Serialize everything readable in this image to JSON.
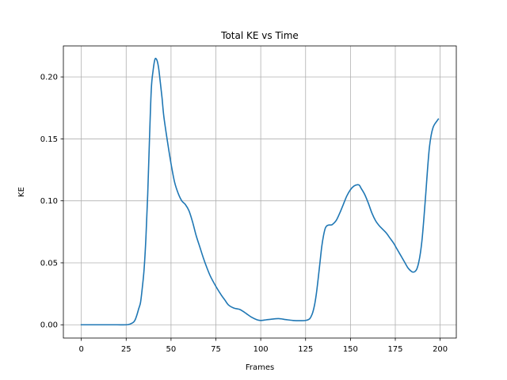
{
  "chart_data": {
    "type": "line",
    "title": "Total KE vs Time",
    "xlabel": "Frames",
    "ylabel": "KE",
    "xlim": [
      -10,
      209
    ],
    "ylim": [
      -0.0107,
      0.225
    ],
    "grid": true,
    "x_ticks": [
      0,
      25,
      50,
      75,
      100,
      125,
      150,
      175,
      200
    ],
    "x_tick_labels": [
      "0",
      "25",
      "50",
      "75",
      "100",
      "125",
      "150",
      "175",
      "200"
    ],
    "y_ticks": [
      0.0,
      0.05,
      0.1,
      0.15,
      0.2
    ],
    "y_tick_labels": [
      "0.00",
      "0.05",
      "0.10",
      "0.15",
      "0.20"
    ],
    "series": [
      {
        "color": "#1f77b4",
        "x": [
          0,
          5,
          10,
          15,
          20,
          25,
          27,
          29,
          30,
          31,
          32,
          33,
          34,
          35,
          36,
          37,
          38,
          39,
          40,
          41,
          42,
          43,
          44,
          45,
          46,
          48,
          50,
          52,
          54,
          56,
          58,
          60,
          62,
          64,
          66,
          68,
          70,
          72,
          75,
          78,
          80,
          82,
          85,
          88,
          90,
          92,
          95,
          98,
          100,
          103,
          106,
          110,
          114,
          118,
          122,
          125,
          127,
          128,
          129,
          130,
          131,
          132,
          133,
          134,
          135,
          136,
          137,
          138,
          139,
          140,
          142,
          144,
          146,
          148,
          150,
          152,
          154,
          155,
          156,
          158,
          160,
          162,
          164,
          166,
          168,
          170,
          172,
          174,
          176,
          178,
          180,
          182,
          184,
          185,
          186,
          187,
          188,
          189,
          190,
          191,
          192,
          193,
          194,
          195,
          196,
          197,
          198,
          199
        ],
        "y": [
          0.0,
          0.0,
          0.0,
          0.0,
          0.0,
          0.0,
          0.0005,
          0.002,
          0.004,
          0.008,
          0.013,
          0.018,
          0.03,
          0.045,
          0.07,
          0.105,
          0.15,
          0.19,
          0.205,
          0.214,
          0.214,
          0.208,
          0.196,
          0.183,
          0.168,
          0.148,
          0.13,
          0.115,
          0.106,
          0.1,
          0.097,
          0.092,
          0.083,
          0.072,
          0.063,
          0.054,
          0.046,
          0.039,
          0.031,
          0.024,
          0.02,
          0.016,
          0.0135,
          0.0125,
          0.011,
          0.009,
          0.006,
          0.004,
          0.0035,
          0.004,
          0.0045,
          0.005,
          0.0042,
          0.0035,
          0.0033,
          0.0035,
          0.0045,
          0.0065,
          0.01,
          0.016,
          0.025,
          0.037,
          0.05,
          0.063,
          0.072,
          0.078,
          0.08,
          0.0805,
          0.0805,
          0.081,
          0.084,
          0.09,
          0.097,
          0.104,
          0.109,
          0.112,
          0.113,
          0.1125,
          0.11,
          0.105,
          0.098,
          0.09,
          0.084,
          0.08,
          0.077,
          0.074,
          0.07,
          0.066,
          0.061,
          0.056,
          0.051,
          0.046,
          0.043,
          0.0425,
          0.043,
          0.045,
          0.05,
          0.058,
          0.07,
          0.087,
          0.106,
          0.126,
          0.143,
          0.153,
          0.159,
          0.162,
          0.164,
          0.166
        ]
      }
    ]
  }
}
